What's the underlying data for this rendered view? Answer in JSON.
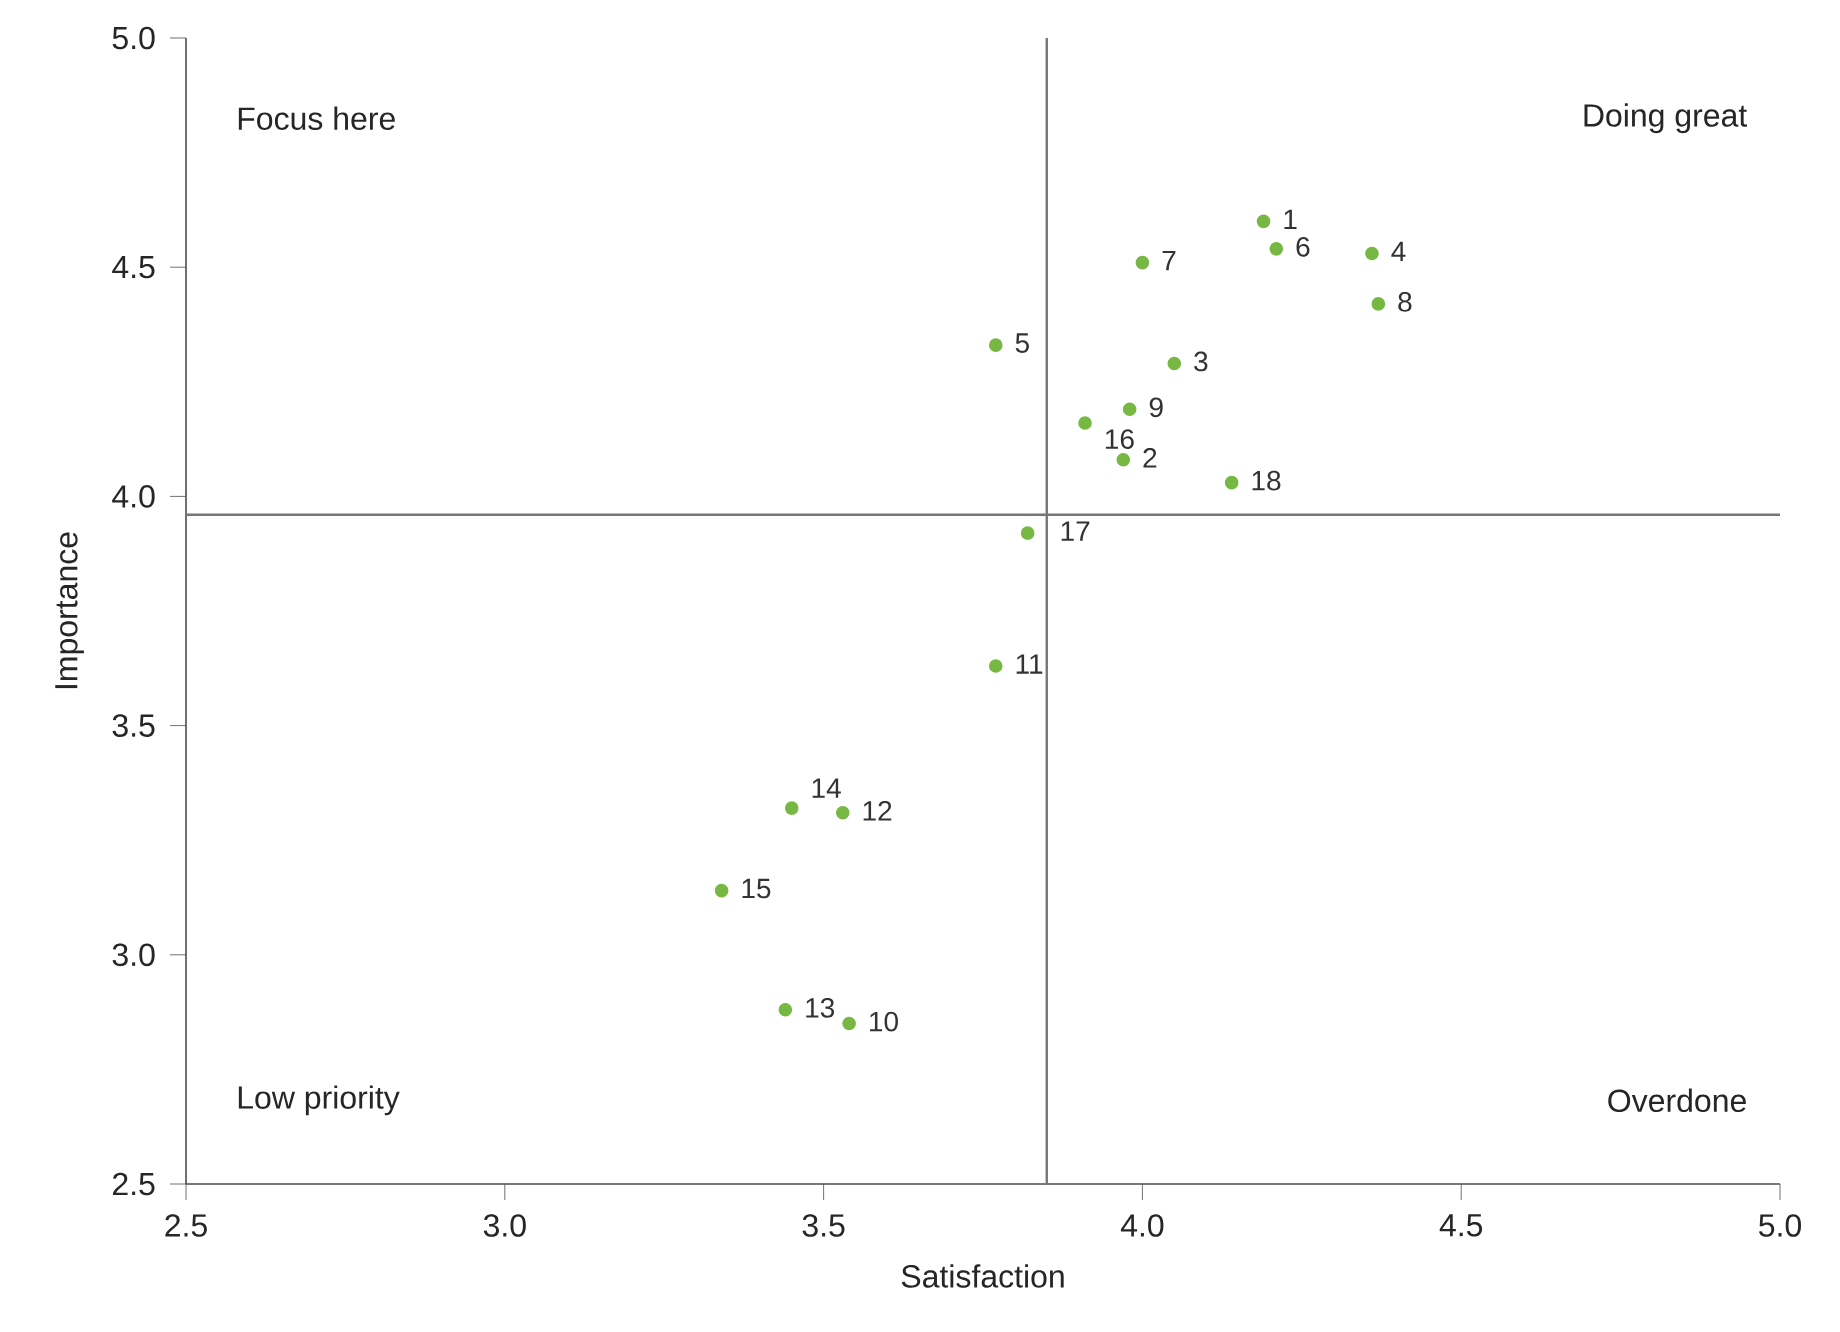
{
  "chart_data": {
    "type": "scatter",
    "xlabel": "Satisfaction",
    "ylabel": "Importance",
    "color": "#77b843",
    "marker": "circle",
    "xlim": [
      2.5,
      5.0
    ],
    "ylim": [
      2.5,
      5.0
    ],
    "xticks": [
      {
        "value": 2.5,
        "label": "2.5"
      },
      {
        "value": 3,
        "label": "3.0"
      },
      {
        "value": 3.5,
        "label": "3.5"
      },
      {
        "value": 4,
        "label": "4.0"
      },
      {
        "value": 4.5,
        "label": "4.5"
      },
      {
        "value": 5,
        "label": "5.0"
      }
    ],
    "yticks": [
      {
        "value": 2.5,
        "label": "2.5"
      },
      {
        "value": 3,
        "label": "3.0"
      },
      {
        "value": 3.5,
        "label": "3.5"
      },
      {
        "value": 4,
        "label": "4.0"
      },
      {
        "value": 4.5,
        "label": "4.5"
      },
      {
        "value": 5,
        "label": "5.0"
      }
    ],
    "x": [
      4.19,
      3.97,
      4.05,
      4.36,
      3.77,
      4.21,
      4.0,
      4.37,
      3.98,
      3.54,
      3.77,
      3.53,
      3.44,
      3.45,
      3.34,
      3.91,
      3.82,
      4.14
    ],
    "values": [
      4.6,
      4.08,
      4.29,
      4.53,
      4.33,
      4.54,
      4.51,
      4.42,
      4.19,
      2.85,
      3.63,
      3.31,
      2.88,
      3.32,
      3.14,
      4.16,
      3.92,
      4.03
    ],
    "ref_lines": [
      {
        "axis": "x",
        "value": 3.85,
        "color": "#777777"
      },
      {
        "axis": "y",
        "value": 3.96,
        "color": "#777777"
      }
    ],
    "annotations": [
      "Focus here",
      "Doing great",
      "Low priority",
      "Overdone",
      {
        "text": "1",
        "x": 4.19,
        "y": 4.6
      },
      {
        "text": "2",
        "x": 3.97,
        "y": 4.08
      },
      {
        "text": "3",
        "x": 4.05,
        "y": 4.29
      },
      {
        "text": "4",
        "x": 4.36,
        "y": 4.53
      },
      {
        "text": "5",
        "x": 3.77,
        "y": 4.33
      },
      {
        "text": "6",
        "x": 4.21,
        "y": 4.54
      },
      {
        "text": "7",
        "x": 4.0,
        "y": 4.51
      },
      {
        "text": "8",
        "x": 4.37,
        "y": 4.42
      },
      {
        "text": "9",
        "x": 3.98,
        "y": 4.19
      },
      {
        "text": "10",
        "x": 3.54,
        "y": 2.85
      },
      {
        "text": "11",
        "x": 3.77,
        "y": 3.63
      },
      {
        "text": "12",
        "x": 3.53,
        "y": 3.31
      },
      {
        "text": "13",
        "x": 3.44,
        "y": 2.88
      },
      {
        "text": "14",
        "x": 3.45,
        "y": 3.32
      },
      {
        "text": "15",
        "x": 3.34,
        "y": 3.14
      },
      {
        "text": "16",
        "x": 3.91,
        "y": 4.16
      },
      {
        "text": "17",
        "x": 3.82,
        "y": 3.92
      },
      {
        "text": "18",
        "x": 4.14,
        "y": 4.03
      }
    ]
  }
}
